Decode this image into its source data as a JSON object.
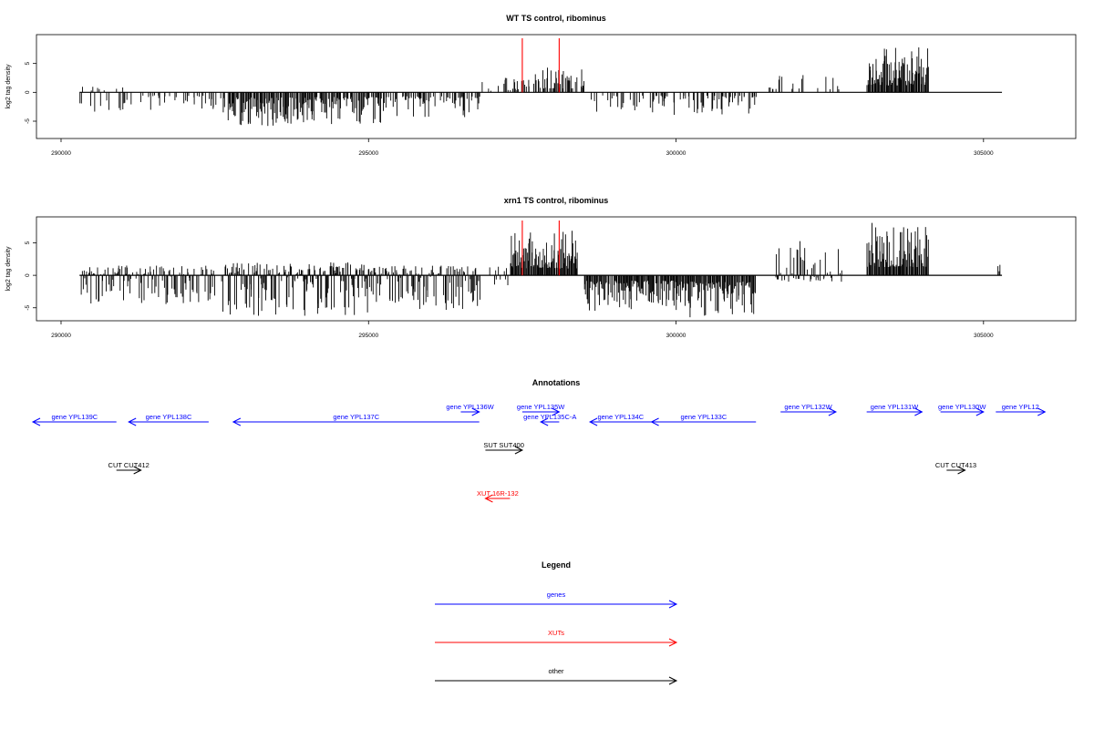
{
  "colors": {
    "gene": "#0000ff",
    "xut": "#ff0000",
    "other": "#000000",
    "marker": "#ff0000",
    "signal": "#000000"
  },
  "chart_data": [
    {
      "type": "bar",
      "title": "WT TS control, ribominus",
      "xlabel": "",
      "ylabel": "log2 tag density",
      "xlim": [
        289600,
        306500
      ],
      "ylim": [
        -8,
        10
      ],
      "x_ticks": [
        290000,
        295000,
        300000,
        305000
      ],
      "x_tick_labels": [
        "290000",
        "295000",
        "300000",
        "305000"
      ],
      "y_ticks": [
        -5,
        0,
        5
      ],
      "y_tick_labels": [
        "-5",
        "0",
        "5"
      ],
      "baseline": {
        "x_start": 290300,
        "x_end": 305300,
        "y": 0
      },
      "marker_lines": [
        297500,
        298100
      ],
      "signal_segments": [
        {
          "x_start": 290300,
          "x_end": 291000,
          "min": -3.5,
          "max": 1.0,
          "density": 0.35
        },
        {
          "x_start": 291000,
          "x_end": 292700,
          "min": -3.5,
          "max": 0.0,
          "density": 0.3
        },
        {
          "x_start": 292700,
          "x_end": 294000,
          "min": -6.0,
          "max": 0.0,
          "density": 0.85
        },
        {
          "x_start": 294000,
          "x_end": 295300,
          "min": -5.5,
          "max": 0.0,
          "density": 0.75
        },
        {
          "x_start": 295300,
          "x_end": 296800,
          "min": -4.5,
          "max": 0.0,
          "density": 0.45
        },
        {
          "x_start": 296800,
          "x_end": 297200,
          "min": 0.0,
          "max": 1.8,
          "density": 0.15
        },
        {
          "x_start": 297200,
          "x_end": 297500,
          "min": 0.0,
          "max": 2.5,
          "density": 0.45
        },
        {
          "x_start": 297500,
          "x_end": 298500,
          "min": 0.0,
          "max": 4.5,
          "density": 0.55
        },
        {
          "x_start": 298600,
          "x_end": 299800,
          "min": -3.5,
          "max": 0.0,
          "density": 0.3
        },
        {
          "x_start": 299800,
          "x_end": 301300,
          "min": -4.0,
          "max": 0.0,
          "density": 0.4
        },
        {
          "x_start": 301500,
          "x_end": 302000,
          "min": 0.0,
          "max": 3.0,
          "density": 0.3
        },
        {
          "x_start": 302000,
          "x_end": 302700,
          "min": 0.0,
          "max": 3.5,
          "density": 0.2
        },
        {
          "x_start": 303100,
          "x_end": 304100,
          "min": 0.0,
          "max": 8.0,
          "density": 1.0
        }
      ]
    },
    {
      "type": "bar",
      "title": "xrn1 TS control, ribominus",
      "xlabel": "",
      "ylabel": "log2 tag density",
      "xlim": [
        289600,
        306500
      ],
      "ylim": [
        -7,
        9
      ],
      "x_ticks": [
        290000,
        295000,
        300000,
        305000
      ],
      "x_tick_labels": [
        "290000",
        "295000",
        "300000",
        "305000"
      ],
      "y_ticks": [
        -5,
        0,
        5
      ],
      "y_tick_labels": [
        "-5",
        "0",
        "5"
      ],
      "baseline": {
        "x_start": 290300,
        "x_end": 305300,
        "y": 0
      },
      "marker_lines": [
        297500,
        298100
      ],
      "signal_segments": [
        {
          "x_start": 290300,
          "x_end": 292500,
          "min": -4.5,
          "max": 1.5,
          "density": 0.75
        },
        {
          "x_start": 292600,
          "x_end": 295000,
          "min": -6.5,
          "max": 2.0,
          "density": 0.95
        },
        {
          "x_start": 295000,
          "x_end": 296800,
          "min": -5.5,
          "max": 1.5,
          "density": 0.85
        },
        {
          "x_start": 296800,
          "x_end": 297300,
          "min": -2.5,
          "max": 1.5,
          "density": 0.2
        },
        {
          "x_start": 297300,
          "x_end": 298400,
          "min": 0.0,
          "max": 7.0,
          "density": 1.0
        },
        {
          "x_start": 298500,
          "x_end": 300000,
          "min": -5.5,
          "max": 0.0,
          "density": 0.9
        },
        {
          "x_start": 300000,
          "x_end": 301300,
          "min": -6.5,
          "max": 0.0,
          "density": 0.9
        },
        {
          "x_start": 301600,
          "x_end": 302700,
          "min": -1.0,
          "max": 5.5,
          "density": 0.6
        },
        {
          "x_start": 303100,
          "x_end": 304100,
          "min": 0.0,
          "max": 8.5,
          "density": 1.0
        },
        {
          "x_start": 304600,
          "x_end": 304700,
          "min": 0.0,
          "max": 1.0,
          "density": 0.05
        },
        {
          "x_start": 305200,
          "x_end": 305300,
          "min": 0.0,
          "max": 2.0,
          "density": 0.1
        }
      ]
    }
  ],
  "annotations": {
    "title": "Annotations",
    "xlim": [
      289600,
      306500
    ],
    "rows_top_to_bottom": 5,
    "items": [
      {
        "label": "gene YPL139C",
        "type": "gene",
        "start": 289500,
        "end": 290900,
        "strand": "-",
        "row": 1
      },
      {
        "label": "gene YPL138C",
        "type": "gene",
        "start": 291100,
        "end": 292400,
        "strand": "-",
        "row": 1
      },
      {
        "label": "gene YPL137C",
        "type": "gene",
        "start": 292800,
        "end": 296800,
        "strand": "-",
        "row": 1
      },
      {
        "label": "gene YPL136W",
        "type": "gene",
        "start": 296500,
        "end": 296800,
        "strand": "+",
        "row": 0
      },
      {
        "label": "gene YPL135W",
        "type": "gene",
        "start": 297500,
        "end": 298100,
        "strand": "+",
        "row": 0
      },
      {
        "label": "gene YPL135C-A",
        "type": "gene",
        "start": 297800,
        "end": 298100,
        "strand": "-",
        "row": 1
      },
      {
        "label": "gene YPL134C",
        "type": "gene",
        "start": 298600,
        "end": 299600,
        "strand": "-",
        "row": 1
      },
      {
        "label": "gene YPL133C",
        "type": "gene",
        "start": 299600,
        "end": 301300,
        "strand": "-",
        "row": 1
      },
      {
        "label": "gene YPL132W",
        "type": "gene",
        "start": 301700,
        "end": 302600,
        "strand": "+",
        "row": 0
      },
      {
        "label": "gene YPL131W",
        "type": "gene",
        "start": 303100,
        "end": 304000,
        "strand": "+",
        "row": 0
      },
      {
        "label": "gene YPL130W",
        "type": "gene",
        "start": 304300,
        "end": 305000,
        "strand": "+",
        "row": 0
      },
      {
        "label": "gene YPL12",
        "type": "gene",
        "start": 305200,
        "end": 306000,
        "strand": "+",
        "row": 0
      },
      {
        "label": "SUT SUT400",
        "type": "other",
        "start": 296900,
        "end": 297500,
        "strand": "+",
        "row": 2
      },
      {
        "label": "CUT CUT412",
        "type": "other",
        "start": 290900,
        "end": 291300,
        "strand": "+",
        "row": 3
      },
      {
        "label": "CUT CUT413",
        "type": "other",
        "start": 304400,
        "end": 304700,
        "strand": "+",
        "row": 3
      },
      {
        "label": "XUT 16R-132",
        "type": "xut",
        "start": 296900,
        "end": 297300,
        "strand": "-",
        "row": 4
      }
    ]
  },
  "legend": {
    "title": "Legend",
    "items": [
      {
        "label": "genes",
        "type": "gene"
      },
      {
        "label": "XUTs",
        "type": "xut"
      },
      {
        "label": "other",
        "type": "other"
      }
    ]
  }
}
